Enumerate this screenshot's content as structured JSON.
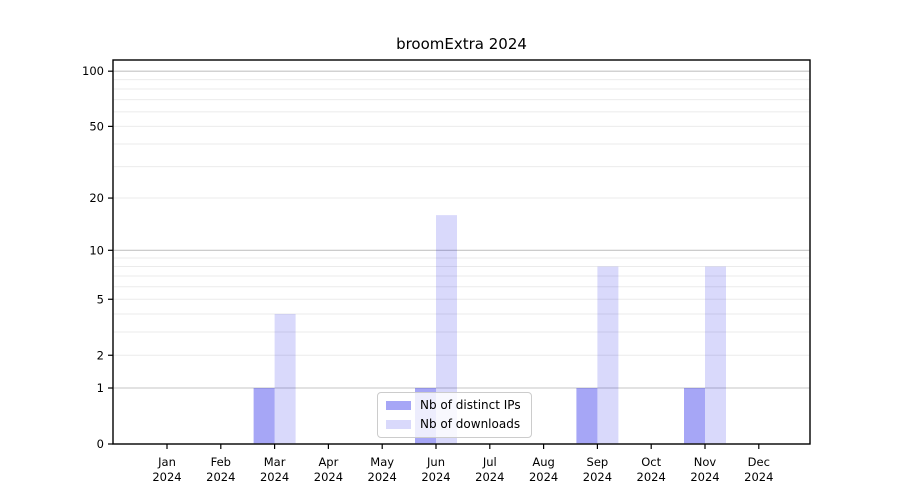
{
  "chart_data": {
    "type": "bar",
    "title": "broomExtra 2024",
    "categories": [
      "Jan",
      "Feb",
      "Mar",
      "Apr",
      "May",
      "Jun",
      "Jul",
      "Aug",
      "Sep",
      "Oct",
      "Nov",
      "Dec"
    ],
    "x_tick_second_line": "2024",
    "series": [
      {
        "name": "Nb of distinct IPs",
        "color": "rgba(0,0,230,0.35)",
        "values": [
          0,
          0,
          1,
          0,
          0,
          1,
          0,
          0,
          1,
          0,
          1,
          0
        ]
      },
      {
        "name": "Nb of downloads",
        "color": "rgba(0,0,230,0.15)",
        "values": [
          0,
          0,
          4,
          0,
          0,
          16,
          0,
          0,
          8,
          0,
          8,
          0
        ]
      }
    ],
    "yticks": [
      0,
      1,
      2,
      5,
      10,
      20,
      50,
      100
    ],
    "y_major_gridlines": [
      1,
      10,
      100
    ],
    "y_minor_gridlines": [
      2,
      3,
      4,
      5,
      6,
      7,
      8,
      9,
      20,
      30,
      40,
      50,
      60,
      70,
      80,
      90
    ],
    "scale": "log1p",
    "ylim": [
      0,
      115
    ],
    "xlabel": "",
    "ylabel": "",
    "grid": true,
    "legend_position": "lower center",
    "colors": {
      "spine": "#000000",
      "major_grid": "#c4c4c4",
      "minor_grid": "#ebebeb",
      "text": "#000000"
    }
  }
}
